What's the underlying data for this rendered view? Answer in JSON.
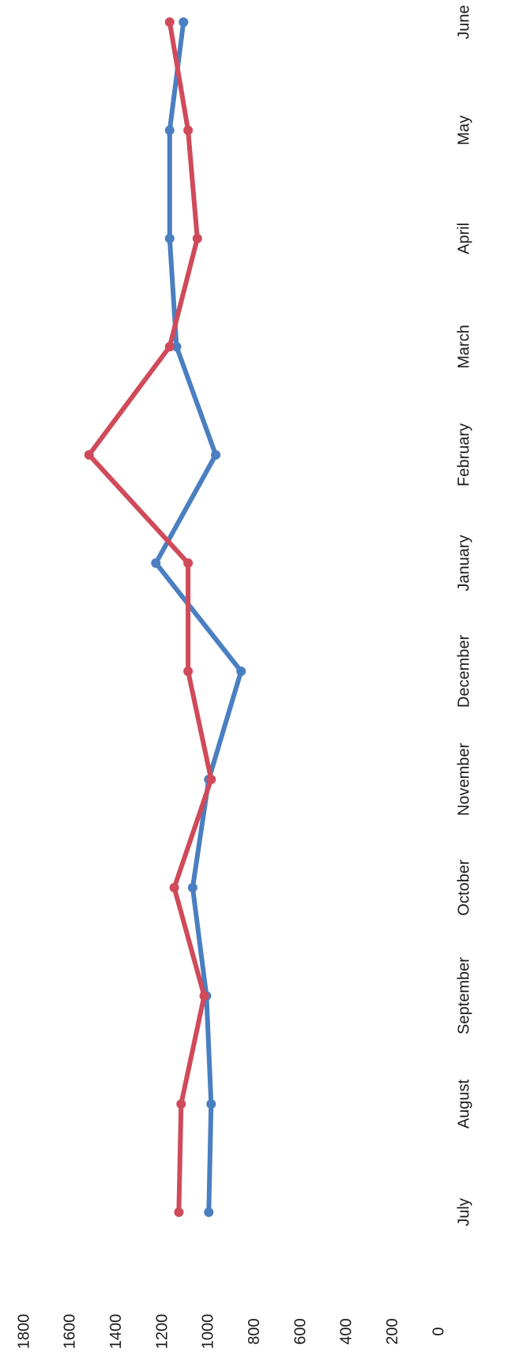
{
  "chart_data": {
    "type": "line",
    "orientation": "rotated-90-ccw",
    "title": "",
    "xlabel": "",
    "ylabel": "",
    "categories": [
      "July",
      "August",
      "September",
      "October",
      "November",
      "December",
      "January",
      "February",
      "March",
      "April",
      "May",
      "June"
    ],
    "y_ticks": [
      "0",
      "200",
      "400",
      "600",
      "800",
      "1000",
      "1200",
      "1400",
      "1600",
      "1800"
    ],
    "ylim": [
      0,
      1800
    ],
    "grid": false,
    "legend": "none",
    "series": [
      {
        "color": "#4a7fc1",
        "values": [
          1000,
          990,
          1010,
          1070,
          1000,
          860,
          1230,
          970,
          1140,
          1170,
          1170,
          1110
        ]
      },
      {
        "color": "#d04a5a",
        "values": [
          1130,
          1120,
          1020,
          1150,
          990,
          1090,
          1090,
          1520,
          1170,
          1050,
          1090,
          1170
        ]
      }
    ]
  }
}
